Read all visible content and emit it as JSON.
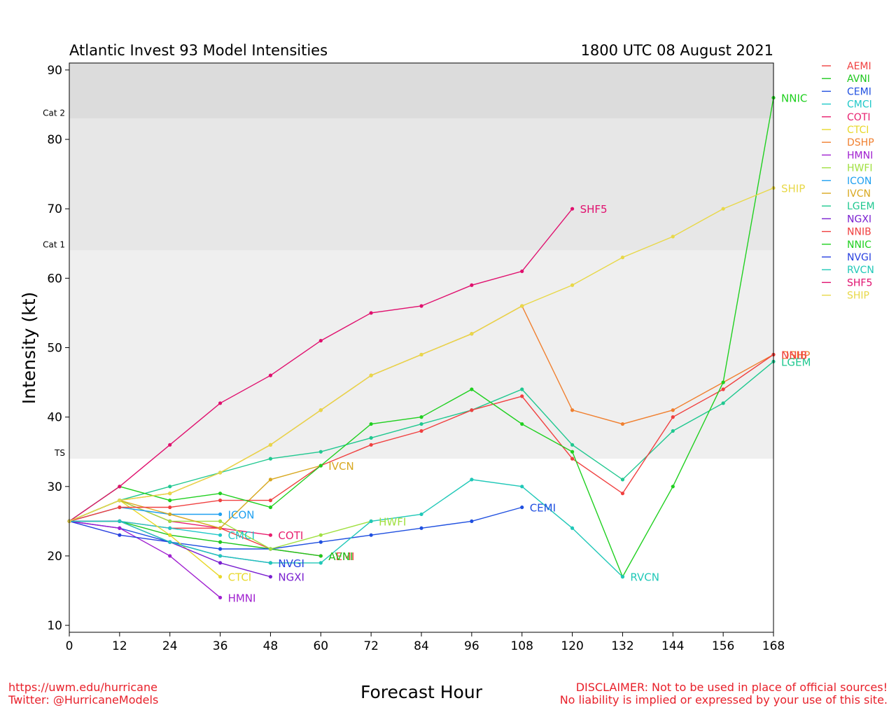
{
  "footer": {
    "url": "https://uwm.edu/hurricane",
    "twitter": "Twitter: @HurricaneModels",
    "disclaimer_line1": "DISCLAIMER: Not to be used in place of official sources!",
    "disclaimer_line2": "No liability is implied or expressed by your use of this site."
  },
  "chart_data": {
    "type": "line",
    "title": "Atlantic Invest 93 Model Intensities",
    "subtitle": "1800 UTC 08 August 2021",
    "xlabel": "Forecast Hour",
    "ylabel": "Intensity (kt)",
    "xlim": [
      0,
      168
    ],
    "ylim": [
      9,
      91
    ],
    "x_ticks": [
      0,
      12,
      24,
      36,
      48,
      60,
      72,
      84,
      96,
      108,
      120,
      132,
      144,
      156,
      168
    ],
    "y_ticks": [
      10,
      20,
      30,
      40,
      50,
      60,
      70,
      80,
      90
    ],
    "grid": false,
    "legend_position": "right-outside",
    "bands": [
      {
        "label": "TS",
        "from": 34,
        "to": 64,
        "color": "#efefef"
      },
      {
        "label": "Cat 1",
        "from": 64,
        "to": 83,
        "color": "#e7e7e7"
      },
      {
        "label": "Cat 2",
        "from": 83,
        "to": 91,
        "color": "#dcdcdc"
      }
    ],
    "series": [
      {
        "name": "AEMI",
        "color": "#f04040",
        "end_label": "AEMI",
        "x": [
          0,
          12,
          24,
          36,
          48,
          60
        ],
        "y": [
          25,
          25,
          24,
          24,
          21,
          20
        ]
      },
      {
        "name": "AVNI",
        "color": "#1ec81e",
        "end_label": "AVNI",
        "x": [
          0,
          12,
          24,
          36,
          48,
          60
        ],
        "y": [
          25,
          25,
          23,
          22,
          21,
          20
        ]
      },
      {
        "name": "CEMI",
        "color": "#2050e0",
        "end_label": "CEMI",
        "x": [
          0,
          12,
          24,
          36,
          48,
          60,
          72,
          84,
          96,
          108
        ],
        "y": [
          25,
          24,
          22,
          21,
          21,
          22,
          23,
          24,
          25,
          27
        ]
      },
      {
        "name": "CMCI",
        "color": "#20c8c8",
        "end_label": "CMCI",
        "x": [
          0,
          12,
          24,
          36
        ],
        "y": [
          25,
          25,
          24,
          23
        ]
      },
      {
        "name": "COTI",
        "color": "#e81e6e",
        "end_label": "COTI",
        "x": [
          0,
          12,
          24,
          36,
          48
        ],
        "y": [
          25,
          28,
          25,
          24,
          23
        ]
      },
      {
        "name": "CTCI",
        "color": "#e8d82a",
        "end_label": "CTCI",
        "x": [
          0,
          12,
          24,
          36
        ],
        "y": [
          25,
          28,
          23,
          17
        ]
      },
      {
        "name": "DSHP",
        "color": "#f08030",
        "end_label": "DSHP",
        "x": [
          0,
          12,
          24,
          36,
          48,
          60,
          72,
          84,
          96,
          108,
          120,
          132,
          144,
          156,
          168
        ],
        "y": [
          25,
          28,
          29,
          32,
          36,
          41,
          46,
          49,
          52,
          56,
          41,
          39,
          41,
          45,
          49
        ]
      },
      {
        "name": "HMNI",
        "color": "#a020d0",
        "end_label": "HMNI",
        "x": [
          0,
          12,
          24,
          36
        ],
        "y": [
          25,
          24,
          20,
          14
        ]
      },
      {
        "name": "HWFI",
        "color": "#a0e040",
        "end_label": "HWFI",
        "x": [
          0,
          12,
          24,
          36,
          48,
          60,
          72
        ],
        "y": [
          25,
          28,
          25,
          25,
          21,
          23,
          25
        ]
      },
      {
        "name": "ICON",
        "color": "#20a0f0",
        "end_label": "ICON",
        "x": [
          0,
          12,
          24,
          36
        ],
        "y": [
          25,
          27,
          26,
          26
        ]
      },
      {
        "name": "IVCN",
        "color": "#d8a820",
        "end_label": "IVCN",
        "x": [
          0,
          12,
          24,
          36,
          48,
          60
        ],
        "y": [
          25,
          28,
          26,
          24,
          31,
          33
        ]
      },
      {
        "name": "LGEM",
        "color": "#20c890",
        "end_label": "LGEM",
        "x": [
          0,
          12,
          24,
          36,
          48,
          60,
          72,
          84,
          96,
          108,
          120,
          132,
          144,
          156,
          168
        ],
        "y": [
          25,
          28,
          30,
          32,
          34,
          35,
          37,
          39,
          41,
          44,
          36,
          31,
          38,
          42,
          48
        ]
      },
      {
        "name": "NGXI",
        "color": "#7a20d0",
        "end_label": "NGXI",
        "x": [
          0,
          12,
          24,
          36,
          48
        ],
        "y": [
          25,
          25,
          22,
          19,
          17
        ]
      },
      {
        "name": "NNIB",
        "color": "#f04040",
        "end_label": "NNIB",
        "x": [
          0,
          12,
          24,
          36,
          48,
          60,
          72,
          84,
          96,
          108,
          120,
          132,
          144,
          156,
          168
        ],
        "y": [
          25,
          27,
          27,
          28,
          28,
          33,
          36,
          38,
          41,
          43,
          34,
          29,
          40,
          44,
          49
        ]
      },
      {
        "name": "NNIC",
        "color": "#20d020",
        "end_label": "NNIC",
        "x": [
          0,
          12,
          24,
          36,
          48,
          60,
          72,
          84,
          96,
          108,
          120,
          132,
          144,
          156,
          168
        ],
        "y": [
          25,
          30,
          28,
          29,
          27,
          33,
          39,
          40,
          44,
          39,
          35,
          17,
          30,
          45,
          86
        ]
      },
      {
        "name": "NVGI",
        "color": "#2840e0",
        "end_label": "NVGI",
        "x": [
          0,
          12,
          24,
          36,
          48
        ],
        "y": [
          25,
          23,
          22,
          20,
          19
        ]
      },
      {
        "name": "RVCN",
        "color": "#20c8b8",
        "end_label": "RVCN",
        "x": [
          0,
          12,
          24,
          36,
          48,
          60,
          72,
          84,
          96,
          108,
          120,
          132
        ],
        "y": [
          25,
          25,
          22,
          20,
          19,
          19,
          25,
          26,
          31,
          30,
          24,
          17
        ]
      },
      {
        "name": "SHF5",
        "color": "#e0106e",
        "end_label": "SHF5",
        "x": [
          0,
          12,
          24,
          36,
          48,
          60,
          72,
          84,
          96,
          108,
          120
        ],
        "y": [
          25,
          30,
          36,
          42,
          46,
          51,
          55,
          56,
          59,
          61,
          70
        ]
      },
      {
        "name": "SHIP",
        "color": "#e8d848",
        "end_label": "SHIP",
        "x": [
          0,
          12,
          24,
          36,
          48,
          60,
          72,
          84,
          96,
          108,
          120,
          132,
          144,
          156,
          168
        ],
        "y": [
          25,
          28,
          29,
          32,
          36,
          41,
          46,
          49,
          52,
          56,
          59,
          63,
          66,
          70,
          73
        ]
      }
    ]
  }
}
